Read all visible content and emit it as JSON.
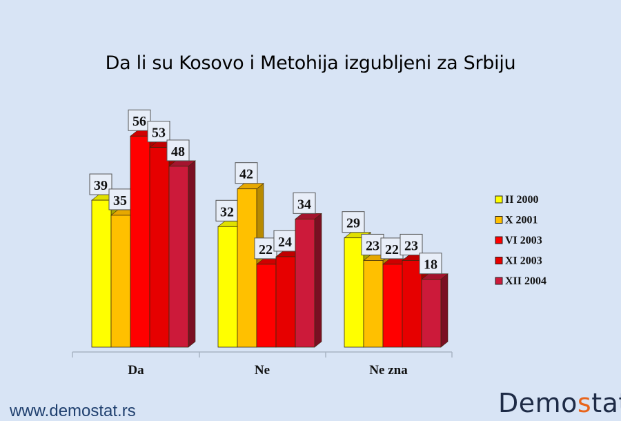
{
  "title": "Da li su Kosovo i Metohija izgubljeni za Srbiju",
  "footer": {
    "url": "www.demostat.rs",
    "logo_pre": "Demo",
    "logo_accent": "s",
    "logo_post": "tat"
  },
  "colors": {
    "background": "#d8e4f5",
    "series": [
      "#ffff00",
      "#ffc000",
      "#ff0000",
      "#e60000",
      "#cc1a3a"
    ],
    "side": [
      "#a8a800",
      "#b88a00",
      "#b30000",
      "#a00000",
      "#7a0f22"
    ],
    "top": [
      "#e0e000",
      "#e6a800",
      "#d00000",
      "#c00000",
      "#a3142e"
    ]
  },
  "chart_data": {
    "type": "bar",
    "title": "Da li su Kosovo i Metohija izgubljeni za Srbiju",
    "xlabel": "",
    "ylabel": "",
    "categories": [
      "Da",
      "Ne",
      "Ne zna"
    ],
    "series": [
      {
        "name": "II 2000",
        "values": [
          39,
          32,
          29
        ]
      },
      {
        "name": "X 2001",
        "values": [
          35,
          42,
          23
        ]
      },
      {
        "name": "VI 2003",
        "values": [
          56,
          22,
          22
        ]
      },
      {
        "name": "XI 2003",
        "values": [
          53,
          24,
          23
        ]
      },
      {
        "name": "XII 2004",
        "values": [
          48,
          34,
          18
        ]
      }
    ],
    "ylim": [
      0,
      60
    ],
    "grid": false,
    "legend_position": "right",
    "data_labels": true,
    "style": "3d-clustered"
  }
}
